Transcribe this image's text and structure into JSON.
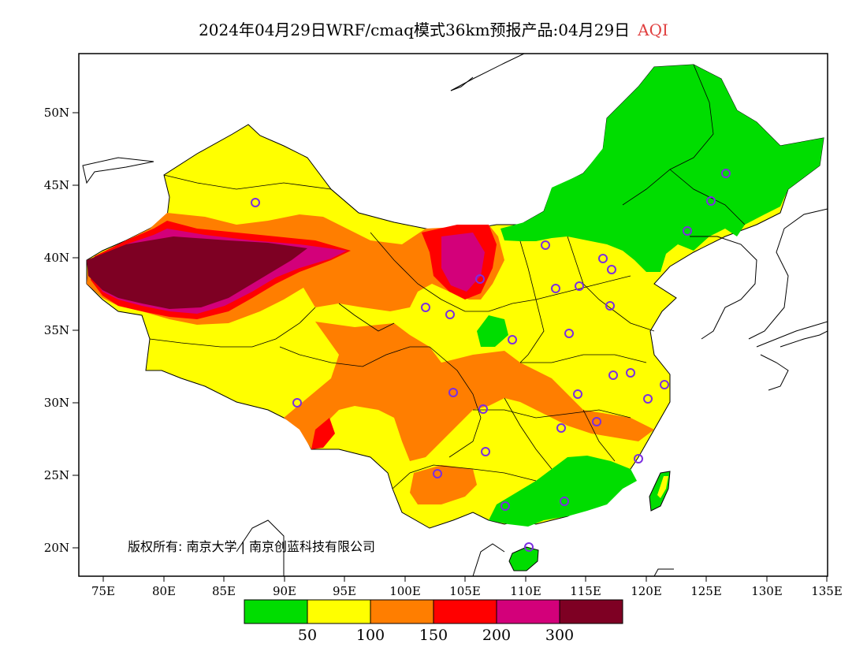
{
  "header": {
    "title": "2024年04月29日WRF/cmaq模式36km预报产品:04月29日",
    "variable": "AQI",
    "variable_color": "#e04040"
  },
  "map": {
    "lon_ticks": [
      "75E",
      "80E",
      "85E",
      "90E",
      "95E",
      "100E",
      "105E",
      "110E",
      "115E",
      "120E",
      "125E",
      "130E",
      "135E"
    ],
    "lat_ticks": [
      "50N",
      "45N",
      "40N",
      "35N",
      "30N",
      "25N",
      "20N"
    ],
    "copyright": "版权所有: 南京大学 | 南京创蓝科技有限公司"
  },
  "legend": {
    "colors": [
      "#00dd00",
      "#ffff00",
      "#ff7e00",
      "#ff0000",
      "#d3007a",
      "#7e0023"
    ],
    "labels": [
      "50",
      "100",
      "150",
      "200",
      "300"
    ]
  }
}
